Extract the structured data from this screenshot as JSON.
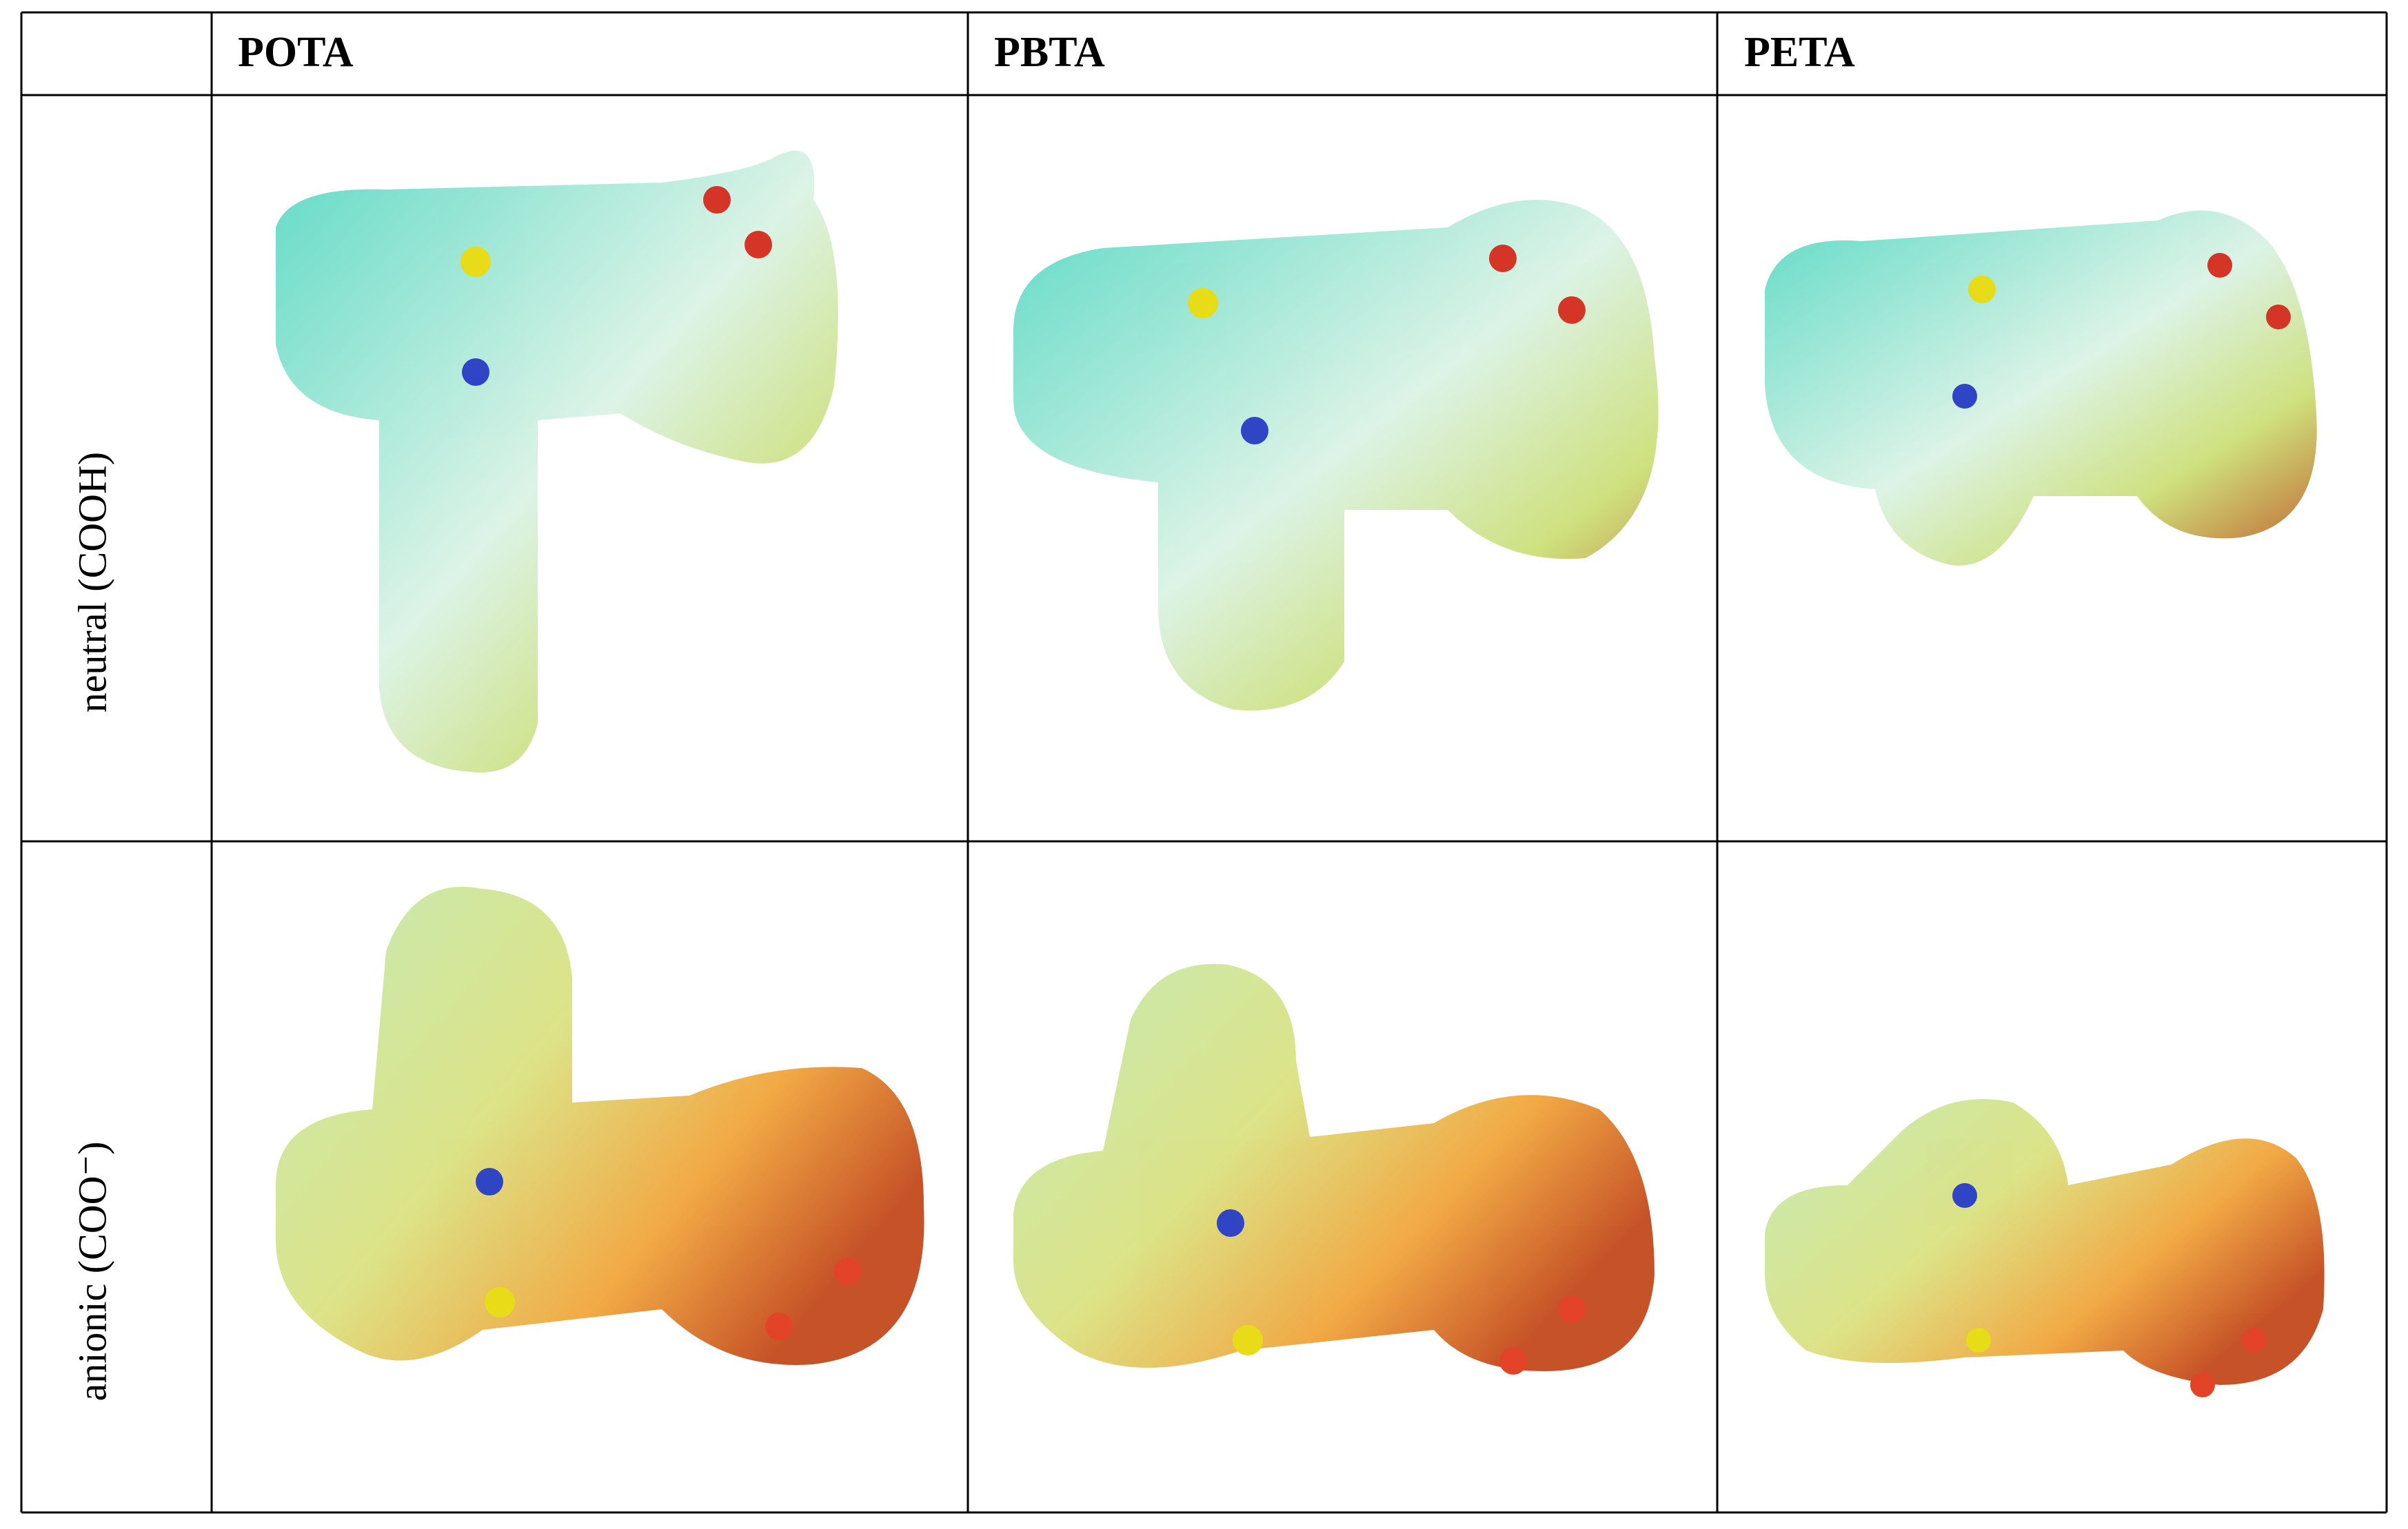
{
  "table": {
    "header": [
      "POTA",
      "PBTA",
      "PETA"
    ],
    "rows": [
      {
        "label": "neutral (COOH)"
      },
      {
        "label": "anionic (COO⁻)"
      }
    ]
  }
}
